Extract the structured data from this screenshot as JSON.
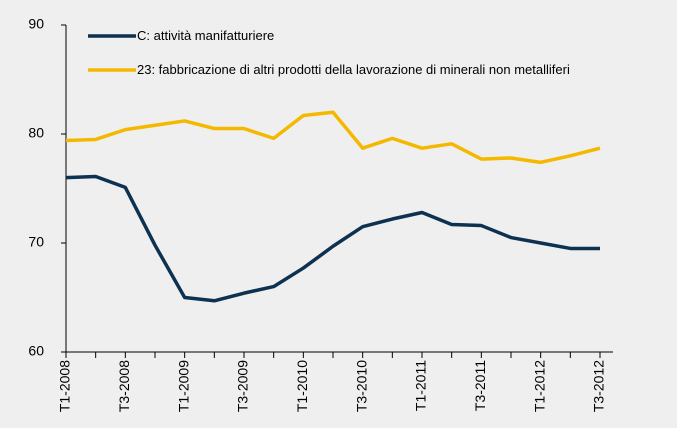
{
  "chart_data": {
    "type": "line",
    "categories": [
      "T1-2008",
      null,
      "T3-2008",
      null,
      "T1-2009",
      null,
      "T3-2009",
      null,
      "T1-2010",
      null,
      "T3-2010",
      null,
      "T1-2011",
      null,
      "T3-2011",
      null,
      "T1-2012",
      null,
      "T3-2012"
    ],
    "series": [
      {
        "name": "C: attività manifatturiere",
        "color": "#0d3150",
        "values": [
          76.0,
          76.1,
          75.1,
          69.8,
          65.0,
          64.7,
          65.4,
          66.0,
          67.7,
          69.7,
          71.5,
          72.2,
          72.8,
          71.7,
          71.6,
          70.5,
          70.0,
          69.5,
          69.5
        ]
      },
      {
        "name": "23: fabbricazione di altri prodotti della lavorazione di minerali non metalliferi",
        "color": "#f5b800",
        "values": [
          79.4,
          79.5,
          80.4,
          80.8,
          81.2,
          80.5,
          80.5,
          79.6,
          81.7,
          82.0,
          78.7,
          79.6,
          78.7,
          79.1,
          77.7,
          77.8,
          77.4,
          78.0,
          78.7
        ]
      }
    ],
    "ylim": [
      60,
      90
    ],
    "yticks": [
      60,
      70,
      80,
      90
    ],
    "grid": false,
    "legend": "upper left"
  }
}
